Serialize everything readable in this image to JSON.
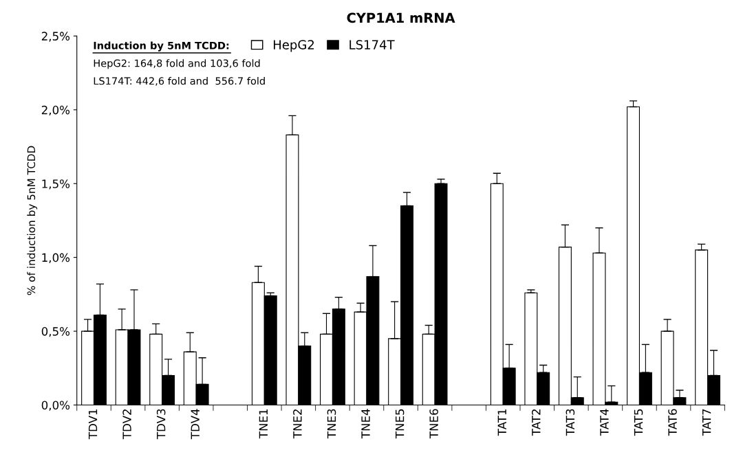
{
  "chart_data": {
    "type": "bar",
    "title": "CYP1A1 mRNA",
    "ylabel": "% of induction by 5nM TCDD",
    "annotations": [
      "Induction by 5nM TCDD:",
      "HepG2: 164,8 fold and 103,6 fold",
      "LS174T: 442,6 fold and  556.7 fold"
    ],
    "categories": [
      "TDV1",
      "TDV2",
      "TDV3",
      "TDV4",
      null,
      "TNE1",
      "TNE2",
      "TNE3",
      "TNE4",
      "TNE5",
      "TNE6",
      null,
      "TAT1",
      "TAT2",
      "TAT3",
      "TAT4",
      "TAT5",
      "TAT6",
      "TAT7"
    ],
    "series": [
      {
        "name": "HepG2",
        "color": "#ffffff",
        "values": [
          0.5,
          0.51,
          0.48,
          0.36,
          null,
          0.83,
          1.83,
          0.48,
          0.63,
          0.45,
          0.48,
          null,
          1.5,
          0.76,
          1.07,
          1.03,
          2.02,
          0.5,
          1.05
        ],
        "errors": [
          [
            0.5,
            0.58
          ],
          [
            0.51,
            0.65
          ],
          [
            0.48,
            0.55
          ],
          [
            0.36,
            0.49
          ],
          null,
          [
            0.83,
            0.94
          ],
          [
            1.83,
            1.96
          ],
          [
            0.48,
            0.62
          ],
          [
            0.63,
            0.69
          ],
          [
            0.45,
            0.7
          ],
          [
            0.48,
            0.54
          ],
          null,
          [
            1.5,
            1.57
          ],
          [
            0.76,
            0.78
          ],
          [
            1.07,
            1.22
          ],
          [
            1.03,
            1.2
          ],
          [
            2.02,
            2.06
          ],
          [
            0.5,
            0.58
          ],
          [
            1.05,
            1.09
          ]
        ]
      },
      {
        "name": "LS174T",
        "color": "#000000",
        "values": [
          0.61,
          0.51,
          0.2,
          0.14,
          null,
          0.74,
          0.4,
          0.65,
          0.87,
          1.35,
          1.5,
          null,
          0.25,
          0.22,
          0.05,
          0.02,
          0.22,
          0.05,
          0.2
        ],
        "errors": [
          [
            0.61,
            0.82
          ],
          [
            0.51,
            0.78
          ],
          [
            0.2,
            0.31
          ],
          [
            0.14,
            0.32
          ],
          null,
          [
            0.74,
            0.76
          ],
          [
            0.4,
            0.49
          ],
          [
            0.65,
            0.73
          ],
          [
            0.87,
            1.08
          ],
          [
            1.35,
            1.44
          ],
          [
            1.5,
            1.53
          ],
          null,
          [
            0.25,
            0.41
          ],
          [
            0.22,
            0.27
          ],
          [
            0.05,
            0.19
          ],
          [
            0.02,
            0.13
          ],
          [
            0.22,
            0.41
          ],
          [
            0.05,
            0.1
          ],
          [
            0.2,
            0.37
          ]
        ]
      }
    ],
    "ylim": [
      0,
      2.5
    ],
    "yticks": [
      {
        "value": 0,
        "label": "0,0%"
      },
      {
        "value": 0.5,
        "label": "0,5%"
      },
      {
        "value": 1.0,
        "label": "1,0%"
      },
      {
        "value": 1.5,
        "label": "1,5%"
      },
      {
        "value": 2.0,
        "label": "2,0%"
      },
      {
        "value": 2.5,
        "label": "2,5%"
      }
    ],
    "grid": false,
    "legend": "top"
  }
}
